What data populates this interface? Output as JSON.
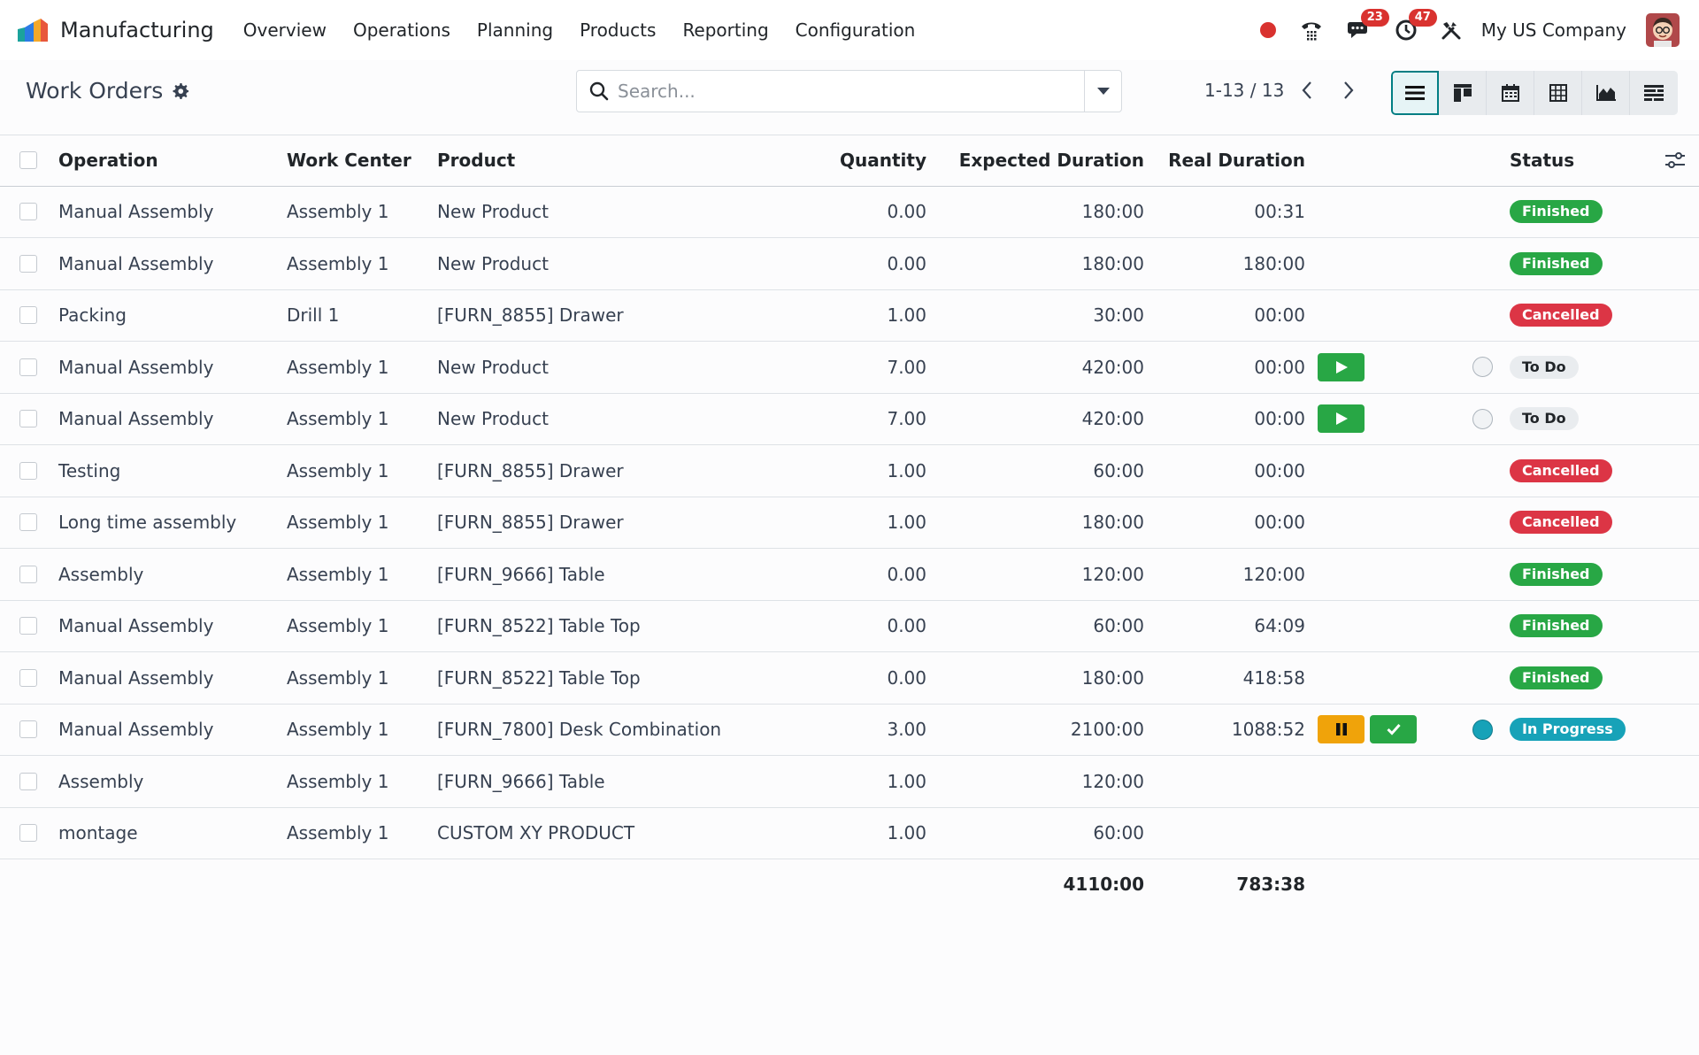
{
  "app": {
    "name": "Manufacturing",
    "menu": [
      "Overview",
      "Operations",
      "Planning",
      "Products",
      "Reporting",
      "Configuration"
    ],
    "messages_count": "23",
    "activities_count": "47",
    "company": "My US Company"
  },
  "control": {
    "title": "Work Orders",
    "search_placeholder": "Search...",
    "pager": "1-13 / 13",
    "views": [
      "list-view",
      "kanban-view",
      "calendar-view",
      "pivot-view",
      "graph-view",
      "gantt-view"
    ],
    "active_view": "list-view"
  },
  "table": {
    "headers": {
      "operation": "Operation",
      "work_center": "Work Center",
      "product": "Product",
      "quantity": "Quantity",
      "expected_duration": "Expected Duration",
      "real_duration": "Real Duration",
      "status": "Status"
    },
    "rows": [
      {
        "operation": "Manual Assembly",
        "work_center": "Assembly 1",
        "product": "New Product",
        "quantity": "0.00",
        "expected": "180:00",
        "real": "00:31",
        "status": "Finished"
      },
      {
        "operation": "Manual Assembly",
        "work_center": "Assembly 1",
        "product": "New Product",
        "quantity": "0.00",
        "expected": "180:00",
        "real": "180:00",
        "status": "Finished"
      },
      {
        "operation": "Packing",
        "work_center": "Drill 1",
        "product": "[FURN_8855] Drawer",
        "quantity": "1.00",
        "expected": "30:00",
        "real": "00:00",
        "status": "Cancelled"
      },
      {
        "operation": "Manual Assembly",
        "work_center": "Assembly 1",
        "product": "New Product",
        "quantity": "7.00",
        "expected": "420:00",
        "real": "00:00",
        "status": "To Do"
      },
      {
        "operation": "Manual Assembly",
        "work_center": "Assembly 1",
        "product": "New Product",
        "quantity": "7.00",
        "expected": "420:00",
        "real": "00:00",
        "status": "To Do"
      },
      {
        "operation": "Testing",
        "work_center": "Assembly 1",
        "product": "[FURN_8855] Drawer",
        "quantity": "1.00",
        "expected": "60:00",
        "real": "00:00",
        "status": "Cancelled"
      },
      {
        "operation": "Long time assembly",
        "work_center": "Assembly 1",
        "product": "[FURN_8855] Drawer",
        "quantity": "1.00",
        "expected": "180:00",
        "real": "00:00",
        "status": "Cancelled"
      },
      {
        "operation": "Assembly",
        "work_center": "Assembly 1",
        "product": "[FURN_9666] Table",
        "quantity": "0.00",
        "expected": "120:00",
        "real": "120:00",
        "status": "Finished"
      },
      {
        "operation": "Manual Assembly",
        "work_center": "Assembly 1",
        "product": "[FURN_8522] Table Top",
        "quantity": "0.00",
        "expected": "60:00",
        "real": "64:09",
        "status": "Finished"
      },
      {
        "operation": "Manual Assembly",
        "work_center": "Assembly 1",
        "product": "[FURN_8522] Table Top",
        "quantity": "0.00",
        "expected": "180:00",
        "real": "418:58",
        "status": "Finished"
      },
      {
        "operation": "Manual Assembly",
        "work_center": "Assembly 1",
        "product": "[FURN_7800] Desk Combination",
        "quantity": "3.00",
        "expected": "2100:00",
        "real": "1088:52",
        "status": "In Progress"
      },
      {
        "operation": "Assembly",
        "work_center": "Assembly 1",
        "product": "[FURN_9666] Table",
        "quantity": "1.00",
        "expected": "120:00",
        "real": "",
        "status": ""
      },
      {
        "operation": "montage",
        "work_center": "Assembly 1",
        "product": "CUSTOM XY PRODUCT",
        "quantity": "1.00",
        "expected": "60:00",
        "real": "",
        "status": ""
      }
    ],
    "totals": {
      "expected": "4110:00",
      "real": "783:38"
    }
  },
  "colors": {
    "finished": "#28a745",
    "cancelled": "#dc3545",
    "todo": "#e9ecef",
    "in_progress": "#17a2b8",
    "pause": "#f0a30a",
    "accent": "#017e84"
  }
}
